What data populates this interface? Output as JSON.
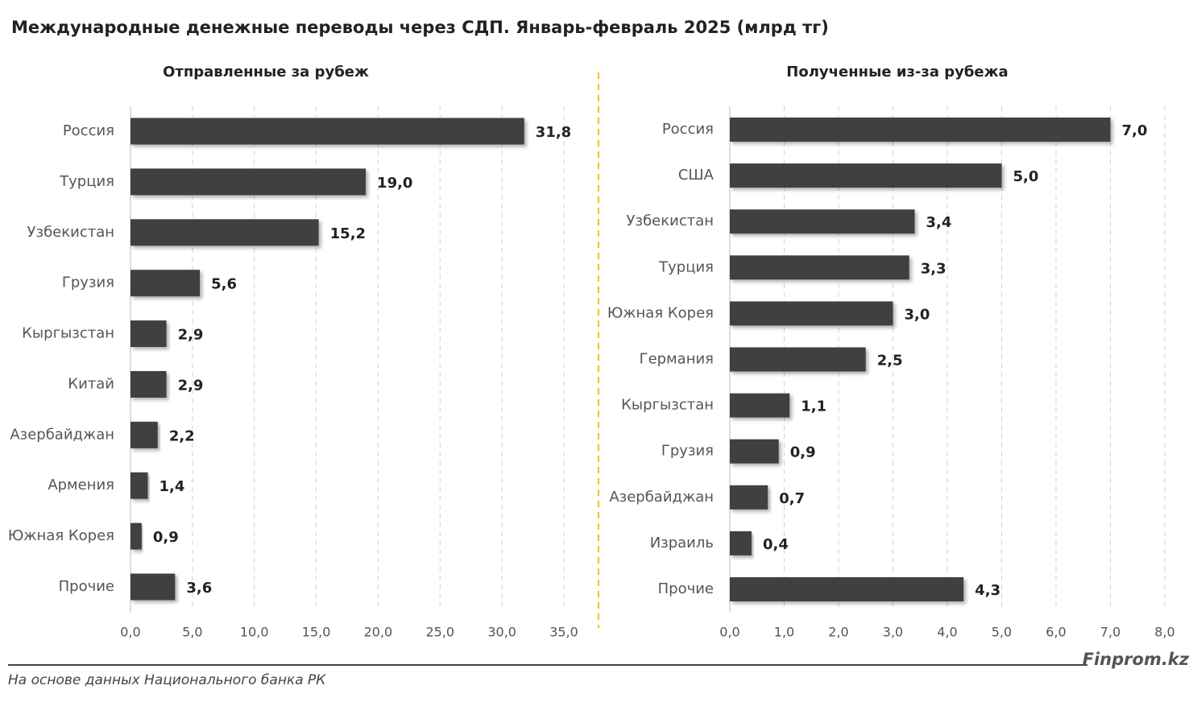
{
  "title": "Международные денежные переводы через СДП. Январь-февраль 2025 (млрд тг)",
  "source": "На основе данных Национального банка РК",
  "brand": "Finprom.kz",
  "chart_data": [
    {
      "type": "barh",
      "title": "Отправленные за рубеж",
      "categories": [
        "Россия",
        "Турция",
        "Узбекистан",
        "Грузия",
        "Кыргызстан",
        "Китай",
        "Азербайджан",
        "Армения",
        "Южная Корея",
        "Прочие"
      ],
      "values": [
        31.8,
        19.0,
        15.2,
        5.6,
        2.9,
        2.9,
        2.2,
        1.4,
        0.9,
        3.6
      ],
      "value_labels": [
        "31,8",
        "19,0",
        "15,2",
        "5,6",
        "2,9",
        "2,9",
        "2,2",
        "1,4",
        "0,9",
        "3,6"
      ],
      "color": "#404040",
      "xlim": [
        0,
        35
      ],
      "xticks": [
        {
          "value": 0,
          "label": "0,0"
        },
        {
          "value": 5,
          "label": "5,0"
        },
        {
          "value": 10,
          "label": "10,0"
        },
        {
          "value": 15,
          "label": "15,0"
        },
        {
          "value": 20,
          "label": "20,0"
        },
        {
          "value": 25,
          "label": "25,0"
        },
        {
          "value": 30,
          "label": "30,0"
        },
        {
          "value": 35,
          "label": "35,0"
        }
      ],
      "grid": true
    },
    {
      "type": "barh",
      "title": "Полученные из-за рубежа",
      "categories": [
        "Россия",
        "США",
        "Узбекистан",
        "Турция",
        "Южная Корея",
        "Германия",
        "Кыргызстан",
        "Грузия",
        "Азербайджан",
        "Израиль",
        "Прочие"
      ],
      "values": [
        7.0,
        5.0,
        3.4,
        3.3,
        3.0,
        2.5,
        1.1,
        0.9,
        0.7,
        0.4,
        4.3
      ],
      "value_labels": [
        "7,0",
        "5,0",
        "3,4",
        "3,3",
        "3,0",
        "2,5",
        "1,1",
        "0,9",
        "0,7",
        "0,4",
        "4,3"
      ],
      "color": "#404040",
      "xlim": [
        0,
        8
      ],
      "xticks": [
        {
          "value": 0,
          "label": "0,0"
        },
        {
          "value": 1,
          "label": "1,0"
        },
        {
          "value": 2,
          "label": "2,0"
        },
        {
          "value": 3,
          "label": "3,0"
        },
        {
          "value": 4,
          "label": "4,0"
        },
        {
          "value": 5,
          "label": "5,0"
        },
        {
          "value": 6,
          "label": "6,0"
        },
        {
          "value": 7,
          "label": "7,0"
        },
        {
          "value": 8,
          "label": "8,0"
        }
      ],
      "grid": true
    }
  ]
}
